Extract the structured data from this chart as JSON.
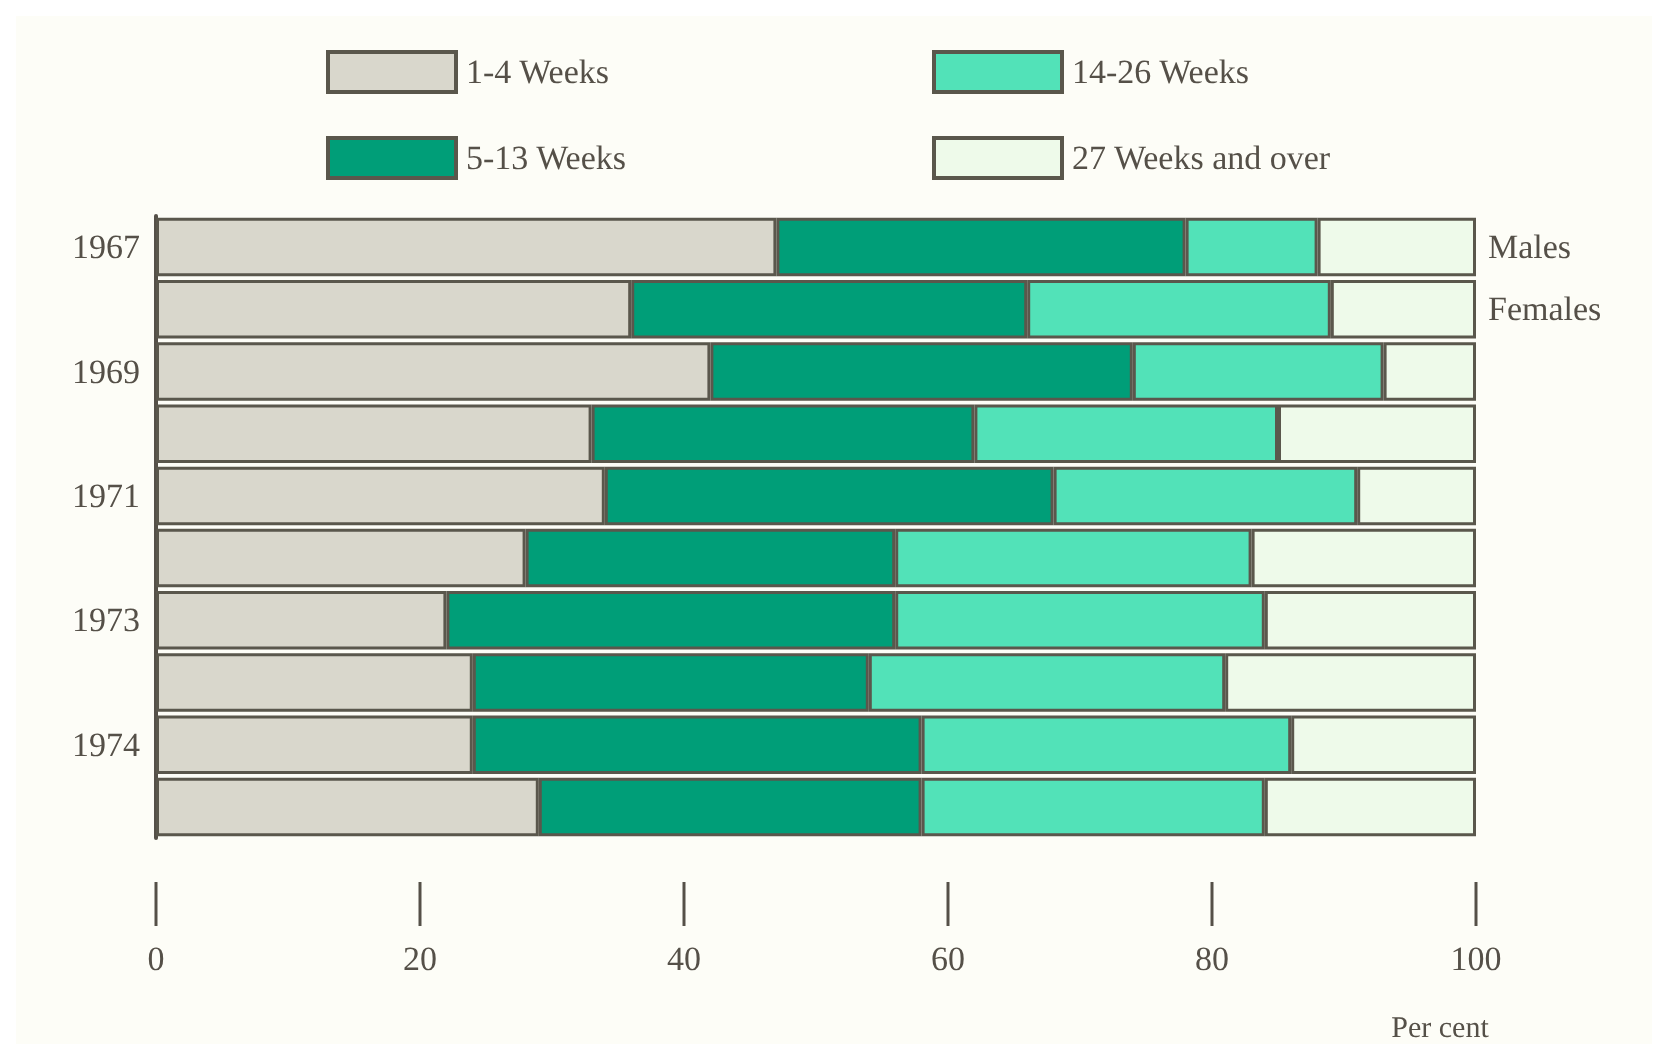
{
  "chart_data": {
    "type": "bar",
    "orientation": "horizontal",
    "stacked": true,
    "categories": [
      "1967",
      null,
      "1969",
      null,
      "1971",
      null,
      "1973",
      null,
      "1974",
      null
    ],
    "series": [
      {
        "name": "1-4 Weeks",
        "color": "#d9d7cc",
        "values": [
          47,
          36,
          42,
          33,
          34,
          28,
          22,
          24,
          24,
          29
        ]
      },
      {
        "name": "5-13 Weeks",
        "color": "#009e78",
        "values": [
          31,
          30,
          32,
          29,
          34,
          28,
          34,
          30,
          34,
          29
        ]
      },
      {
        "name": "14-26 Weeks",
        "color": "#52e2b8",
        "values": [
          10,
          23,
          19,
          23,
          23,
          27,
          28,
          27,
          28,
          26
        ]
      },
      {
        "name": "27 Weeks and over",
        "color": "#eefaea",
        "values": [
          12,
          11,
          7,
          15,
          9,
          17,
          16,
          19,
          14,
          16
        ]
      }
    ],
    "annotations": [
      "Males",
      "Females"
    ],
    "xlabel": "Per cent",
    "xlim": [
      0,
      100
    ],
    "xticks": [
      0,
      20,
      40,
      60,
      80,
      100
    ],
    "grid": false,
    "legend": "top"
  }
}
